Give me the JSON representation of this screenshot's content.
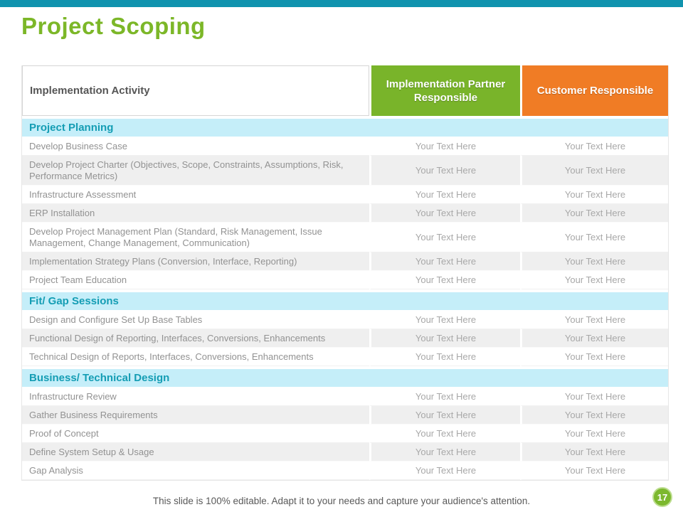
{
  "slide": {
    "title": "Project Scoping",
    "footer": "This slide is 100% editable. Adapt it to your needs and capture your audience's attention.",
    "page_number": "17"
  },
  "colors": {
    "top_bar": "#1093AE",
    "title_green": "#7CB728",
    "partner_header_green": "#79B42A",
    "customer_header_orange": "#F07C25",
    "section_band_cyan": "#C5EEF9",
    "section_text_teal": "#149DB4",
    "alt_row_gray": "#EFEFEF",
    "page_badge_green": "#7CB82E"
  },
  "table": {
    "headers": {
      "activity": "Implementation Activity",
      "partner": "Implementation Partner Responsible",
      "customer": "Customer Responsible"
    },
    "sections": [
      {
        "title": "Project Planning",
        "rows": [
          {
            "activity": "Develop Business Case",
            "partner": "Your Text Here",
            "customer": "Your Text Here",
            "lines": 1
          },
          {
            "activity": "Develop Project Charter (Objectives, Scope, Constraints, Assumptions, Risk, Performance Metrics)",
            "partner": "Your Text Here",
            "customer": "Your Text Here",
            "lines": 2
          },
          {
            "activity": "Infrastructure Assessment",
            "partner": "Your Text Here",
            "customer": "Your Text Here",
            "lines": 1
          },
          {
            "activity": "ERP Installation",
            "partner": "Your Text Here",
            "customer": "Your Text Here",
            "lines": 1
          },
          {
            "activity": "Develop Project Management Plan (Standard, Risk Management, Issue Management, Change Management, Communication)",
            "partner": "Your Text Here",
            "customer": "Your Text Here",
            "lines": 2
          },
          {
            "activity": "Implementation Strategy Plans (Conversion, Interface, Reporting)",
            "partner": "Your Text Here",
            "customer": "Your Text Here",
            "lines": 1
          },
          {
            "activity": "Project Team Education",
            "partner": "Your Text Here",
            "customer": "Your Text Here",
            "lines": 1
          }
        ]
      },
      {
        "title": "Fit/ Gap Sessions",
        "rows": [
          {
            "activity": "Design and Configure Set Up Base Tables",
            "partner": "Your Text Here",
            "customer": "Your Text Here",
            "lines": 1
          },
          {
            "activity": "Functional Design of Reporting, Interfaces, Conversions, Enhancements",
            "partner": "Your Text Here",
            "customer": "Your Text Here",
            "lines": 1
          },
          {
            "activity": "Technical Design of Reports, Interfaces, Conversions, Enhancements",
            "partner": "Your Text Here",
            "customer": "Your Text Here",
            "lines": 1
          }
        ]
      },
      {
        "title": "Business/ Technical Design",
        "rows": [
          {
            "activity": "Infrastructure Review",
            "partner": "Your Text Here",
            "customer": "Your Text Here",
            "lines": 1
          },
          {
            "activity": "Gather Business Requirements",
            "partner": "Your Text Here",
            "customer": "Your Text Here",
            "lines": 1
          },
          {
            "activity": "Proof of Concept",
            "partner": "Your Text Here",
            "customer": "Your Text Here",
            "lines": 1
          },
          {
            "activity": "Define System Setup & Usage",
            "partner": "Your Text Here",
            "customer": "Your Text Here",
            "lines": 1
          },
          {
            "activity": "Gap Analysis",
            "partner": "Your Text Here",
            "customer": "Your Text Here",
            "lines": 1
          }
        ]
      }
    ]
  }
}
